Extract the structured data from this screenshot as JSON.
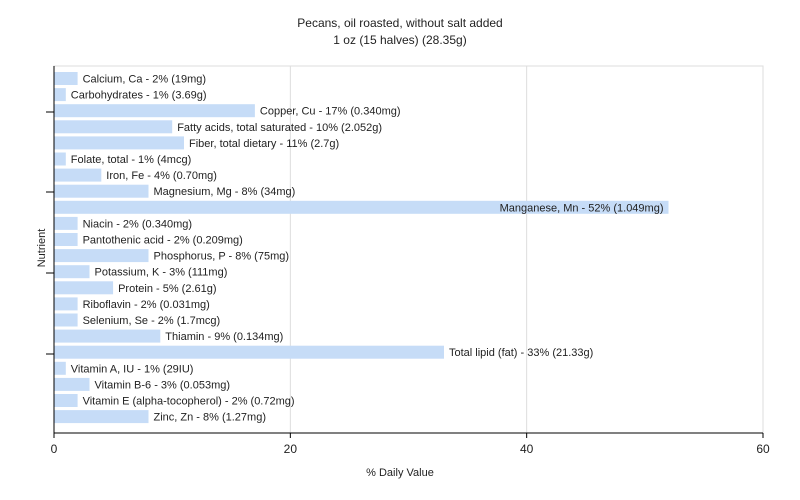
{
  "chart_data": {
    "type": "bar",
    "orientation": "horizontal",
    "title": "Pecans, oil roasted, without salt added",
    "subtitle": "1 oz (15 halves) (28.35g)",
    "xlabel": "% Daily Value",
    "ylabel": "Nutrient",
    "xlim": [
      0,
      60
    ],
    "xticks": [
      0,
      20,
      40,
      60
    ],
    "grid": true,
    "bar_color": "#c6dcf7",
    "categories": [
      "Calcium, Ca",
      "Carbohydrates",
      "Copper, Cu",
      "Fatty acids, total saturated",
      "Fiber, total dietary",
      "Folate, total",
      "Iron, Fe",
      "Magnesium, Mg",
      "Manganese, Mn",
      "Niacin",
      "Pantothenic acid",
      "Phosphorus, P",
      "Potassium, K",
      "Protein",
      "Riboflavin",
      "Selenium, Se",
      "Thiamin",
      "Total lipid (fat)",
      "Vitamin A, IU",
      "Vitamin B-6",
      "Vitamin E (alpha-tocopherol)",
      "Zinc, Zn"
    ],
    "values": [
      2,
      1,
      17,
      10,
      11,
      1,
      4,
      8,
      52,
      2,
      2,
      8,
      3,
      5,
      2,
      2,
      9,
      33,
      1,
      3,
      2,
      8
    ],
    "bar_labels": [
      "Calcium, Ca - 2% (19mg)",
      "Carbohydrates - 1% (3.69g)",
      "Copper, Cu - 17% (0.340mg)",
      "Fatty acids, total saturated - 10% (2.052g)",
      "Fiber, total dietary - 11% (2.7g)",
      "Folate, total - 1% (4mcg)",
      "Iron, Fe - 4% (0.70mg)",
      "Magnesium, Mg - 8% (34mg)",
      "Manganese, Mn - 52% (1.049mg)",
      "Niacin - 2% (0.340mg)",
      "Pantothenic acid - 2% (0.209mg)",
      "Phosphorus, P - 8% (75mg)",
      "Potassium, K - 3% (111mg)",
      "Protein - 5% (2.61g)",
      "Riboflavin - 2% (0.031mg)",
      "Selenium, Se - 2% (1.7mcg)",
      "Thiamin - 9% (0.134mg)",
      "Total lipid (fat) - 33% (21.33g)",
      "Vitamin A, IU - 1% (29IU)",
      "Vitamin B-6 - 3% (0.053mg)",
      "Vitamin E (alpha-tocopherol) - 2% (0.72mg)",
      "Zinc, Zn - 8% (1.27mg)"
    ]
  }
}
